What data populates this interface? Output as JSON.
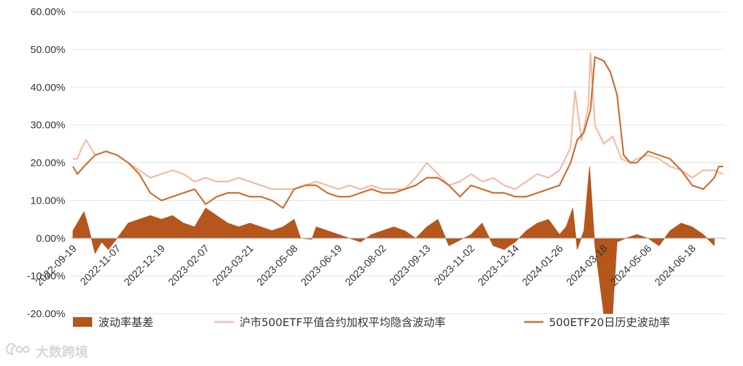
{
  "chart_data": {
    "type": "line",
    "x": [
      "2022-09-19",
      "2022-11-07",
      "2022-12-19",
      "2023-02-07",
      "2023-03-21",
      "2023-05-08",
      "2023-06-19",
      "2023-08-02",
      "2023-09-13",
      "2023-11-02",
      "2023-12-14",
      "2024-01-26",
      "2024-03-18",
      "2024-05-06",
      "2024-06-18"
    ],
    "ylim": [
      -20,
      60
    ],
    "yticks": [
      -20,
      -10,
      0,
      10,
      20,
      30,
      40,
      50,
      60
    ],
    "ytick_labels": [
      "-20.00%",
      "-10.00%",
      "0.00%",
      "10.00%",
      "20.00%",
      "30.00%",
      "40.00%",
      "50.00%",
      "60.00%"
    ],
    "grid": true,
    "legend_position": "bottom",
    "series": [
      {
        "name": "波动率基差",
        "type": "area",
        "color": "#b5561c",
        "points": [
          [
            0,
            2
          ],
          [
            0.15,
            5
          ],
          [
            0.25,
            7
          ],
          [
            0.35,
            3
          ],
          [
            0.5,
            -4
          ],
          [
            0.65,
            -1
          ],
          [
            0.8,
            -3
          ],
          [
            1.0,
            0
          ],
          [
            1.25,
            4
          ],
          [
            1.5,
            5
          ],
          [
            1.75,
            6
          ],
          [
            2.0,
            5
          ],
          [
            2.25,
            6
          ],
          [
            2.5,
            4
          ],
          [
            2.75,
            3
          ],
          [
            3.0,
            8
          ],
          [
            3.25,
            6
          ],
          [
            3.5,
            4
          ],
          [
            3.75,
            3
          ],
          [
            4.0,
            4
          ],
          [
            4.25,
            3
          ],
          [
            4.5,
            2
          ],
          [
            4.75,
            3
          ],
          [
            5.0,
            5
          ],
          [
            5.15,
            0
          ],
          [
            5.4,
            -0.3
          ],
          [
            5.5,
            3
          ],
          [
            5.75,
            2
          ],
          [
            6.0,
            1
          ],
          [
            6.25,
            0
          ],
          [
            6.5,
            -1
          ],
          [
            6.75,
            1
          ],
          [
            7.0,
            2
          ],
          [
            7.25,
            3
          ],
          [
            7.5,
            2
          ],
          [
            7.75,
            0
          ],
          [
            8.0,
            3
          ],
          [
            8.25,
            5
          ],
          [
            8.5,
            -2
          ],
          [
            8.75,
            -0.5
          ],
          [
            9.0,
            1
          ],
          [
            9.25,
            4
          ],
          [
            9.5,
            -2
          ],
          [
            9.75,
            -3
          ],
          [
            10.0,
            -1
          ],
          [
            10.25,
            2
          ],
          [
            10.5,
            4
          ],
          [
            10.75,
            5
          ],
          [
            11.0,
            1
          ],
          [
            11.15,
            3
          ],
          [
            11.3,
            8
          ],
          [
            11.4,
            -3
          ],
          [
            11.55,
            2
          ],
          [
            11.68,
            19
          ],
          [
            11.8,
            -2
          ],
          [
            12.0,
            -20
          ],
          [
            12.2,
            -20
          ],
          [
            12.3,
            -1
          ],
          [
            12.5,
            0
          ],
          [
            12.75,
            1
          ],
          [
            13.0,
            0
          ],
          [
            13.25,
            -2
          ],
          [
            13.5,
            2
          ],
          [
            13.75,
            4
          ],
          [
            14.0,
            3
          ],
          [
            14.25,
            1
          ],
          [
            14.5,
            -2
          ]
        ]
      },
      {
        "name": "沪市500ETF平值合约加权平均隐含波动率",
        "type": "line",
        "color": "#f4b9a3",
        "points": [
          [
            0,
            21
          ],
          [
            0.1,
            21
          ],
          [
            0.2,
            24
          ],
          [
            0.3,
            26
          ],
          [
            0.5,
            22
          ],
          [
            0.75,
            23
          ],
          [
            1.0,
            22
          ],
          [
            1.25,
            20
          ],
          [
            1.5,
            18
          ],
          [
            1.75,
            16
          ],
          [
            2.0,
            17
          ],
          [
            2.25,
            18
          ],
          [
            2.5,
            17
          ],
          [
            2.75,
            15
          ],
          [
            3.0,
            16
          ],
          [
            3.25,
            15
          ],
          [
            3.5,
            15
          ],
          [
            3.75,
            16
          ],
          [
            4.0,
            15
          ],
          [
            4.25,
            14
          ],
          [
            4.5,
            13
          ],
          [
            4.75,
            13
          ],
          [
            5.0,
            13
          ],
          [
            5.25,
            14
          ],
          [
            5.5,
            15
          ],
          [
            5.75,
            14
          ],
          [
            6.0,
            13
          ],
          [
            6.25,
            14
          ],
          [
            6.5,
            13
          ],
          [
            6.75,
            14
          ],
          [
            7.0,
            13
          ],
          [
            7.25,
            13
          ],
          [
            7.5,
            13
          ],
          [
            7.75,
            16
          ],
          [
            8.0,
            20
          ],
          [
            8.25,
            17
          ],
          [
            8.5,
            14
          ],
          [
            8.75,
            15
          ],
          [
            9.0,
            17
          ],
          [
            9.25,
            15
          ],
          [
            9.5,
            16
          ],
          [
            9.75,
            14
          ],
          [
            10.0,
            13
          ],
          [
            10.25,
            15
          ],
          [
            10.5,
            17
          ],
          [
            10.75,
            16
          ],
          [
            11.0,
            18
          ],
          [
            11.25,
            24
          ],
          [
            11.35,
            39
          ],
          [
            11.5,
            26
          ],
          [
            11.65,
            35
          ],
          [
            11.7,
            49
          ],
          [
            11.8,
            30
          ],
          [
            12.0,
            25
          ],
          [
            12.2,
            27
          ],
          [
            12.4,
            21
          ],
          [
            12.6,
            20
          ],
          [
            12.75,
            21
          ],
          [
            13.0,
            22
          ],
          [
            13.25,
            21
          ],
          [
            13.5,
            19
          ],
          [
            13.75,
            18
          ],
          [
            14.0,
            16
          ],
          [
            14.25,
            18
          ],
          [
            14.5,
            18
          ],
          [
            14.7,
            17
          ]
        ]
      },
      {
        "name": "500ETF20日历史波动率",
        "type": "line",
        "color": "#cc6a2b",
        "points": [
          [
            0,
            19
          ],
          [
            0.1,
            17
          ],
          [
            0.25,
            19
          ],
          [
            0.5,
            22
          ],
          [
            0.75,
            23
          ],
          [
            1.0,
            22
          ],
          [
            1.25,
            20
          ],
          [
            1.5,
            17
          ],
          [
            1.75,
            12
          ],
          [
            2.0,
            10
          ],
          [
            2.25,
            11
          ],
          [
            2.5,
            12
          ],
          [
            2.75,
            13
          ],
          [
            3.0,
            9
          ],
          [
            3.25,
            11
          ],
          [
            3.5,
            12
          ],
          [
            3.75,
            12
          ],
          [
            4.0,
            11
          ],
          [
            4.25,
            11
          ],
          [
            4.5,
            10
          ],
          [
            4.75,
            8
          ],
          [
            5.0,
            13
          ],
          [
            5.25,
            14
          ],
          [
            5.5,
            14
          ],
          [
            5.75,
            12
          ],
          [
            6.0,
            11
          ],
          [
            6.25,
            11
          ],
          [
            6.5,
            12
          ],
          [
            6.75,
            13
          ],
          [
            7.0,
            12
          ],
          [
            7.25,
            12
          ],
          [
            7.5,
            13
          ],
          [
            7.75,
            14
          ],
          [
            8.0,
            16
          ],
          [
            8.25,
            16
          ],
          [
            8.5,
            14
          ],
          [
            8.75,
            11
          ],
          [
            9.0,
            14
          ],
          [
            9.25,
            13
          ],
          [
            9.5,
            12
          ],
          [
            9.75,
            12
          ],
          [
            10.0,
            11
          ],
          [
            10.25,
            11
          ],
          [
            10.5,
            12
          ],
          [
            10.75,
            13
          ],
          [
            11.0,
            14
          ],
          [
            11.25,
            20
          ],
          [
            11.4,
            26
          ],
          [
            11.55,
            28
          ],
          [
            11.7,
            34
          ],
          [
            11.8,
            48
          ],
          [
            12.0,
            47
          ],
          [
            12.15,
            44
          ],
          [
            12.3,
            38
          ],
          [
            12.45,
            22
          ],
          [
            12.6,
            20
          ],
          [
            12.75,
            20
          ],
          [
            13.0,
            23
          ],
          [
            13.25,
            22
          ],
          [
            13.5,
            21
          ],
          [
            13.75,
            18
          ],
          [
            14.0,
            14
          ],
          [
            14.25,
            13
          ],
          [
            14.5,
            16
          ],
          [
            14.6,
            19
          ],
          [
            14.7,
            19
          ]
        ]
      }
    ]
  },
  "watermark": {
    "text": "大数跨境",
    "icon": "brand-logo-icon"
  }
}
